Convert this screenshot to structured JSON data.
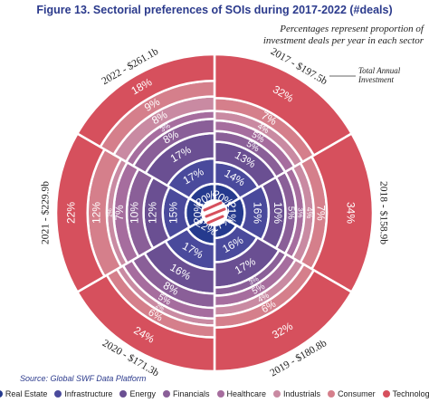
{
  "chart_data": {
    "type": "radial",
    "title": "Figure 13. Sectorial preferences of  SOIs during 2017-2022 (#deals)",
    "subtitle": "Percentages represent proportion of investment deals per year in each sector",
    "annotation": "Total Annual Investment",
    "source": "Source: Global SWF Data Platform",
    "categories": [
      "2017 - $197.5b",
      "2018 - $158.9b",
      "2019 - $180.8b",
      "2020 - $171.3b",
      "2021 - $229.9b",
      "2022 - $261.1b"
    ],
    "series": [
      {
        "name": "Real Estate",
        "color": "#253a8e",
        "values": [
          20,
          21,
          17,
          22,
          20,
          20
        ],
        "value_labels": [
          "20%",
          "21%",
          "17%",
          "22%",
          "20%",
          "20%"
        ]
      },
      {
        "name": "Infrastructure",
        "color": "#4a4a9c",
        "values": [
          14,
          16,
          16,
          17,
          15,
          17
        ],
        "value_labels": [
          "14%",
          "16%",
          "16%",
          "17%",
          "15%",
          "17%"
        ]
      },
      {
        "name": "Energy",
        "color": "#6a4f92",
        "values": [
          13,
          10,
          17,
          16,
          12,
          17
        ],
        "value_labels": [
          "13%",
          "10%",
          "17%",
          "16%",
          "12%",
          "17%"
        ]
      },
      {
        "name": "Financials",
        "color": "#8a5f98",
        "values": [
          5,
          5,
          3,
          8,
          10,
          8
        ],
        "value_labels": [
          "5%",
          "5%",
          "3%",
          "8%",
          "10%",
          "8%"
        ]
      },
      {
        "name": "Healthcare",
        "color": "#a66d9e",
        "values": [
          5,
          3,
          5,
          5,
          7,
          3
        ],
        "value_labels": [
          "5%",
          "3%",
          "5%",
          "5%",
          "7%",
          "3%"
        ]
      },
      {
        "name": "Industrials",
        "color": "#c98aa2",
        "values": [
          4,
          4,
          4,
          2,
          2,
          8
        ],
        "value_labels": [
          "4%",
          "4%",
          "4%",
          "2%",
          "2%",
          "8%"
        ]
      },
      {
        "name": "Consumer",
        "color": "#d57f8b",
        "values": [
          7,
          7,
          6,
          6,
          12,
          9
        ],
        "value_labels": [
          "7%",
          "7%",
          "6%",
          "6%",
          "12%",
          "9%"
        ]
      },
      {
        "name": "Technology",
        "color": "#d6505d",
        "values": [
          32,
          34,
          32,
          24,
          22,
          18
        ],
        "value_labels": [
          "32%",
          "34%",
          "32%",
          "24%",
          "22%",
          "18%"
        ]
      }
    ]
  }
}
